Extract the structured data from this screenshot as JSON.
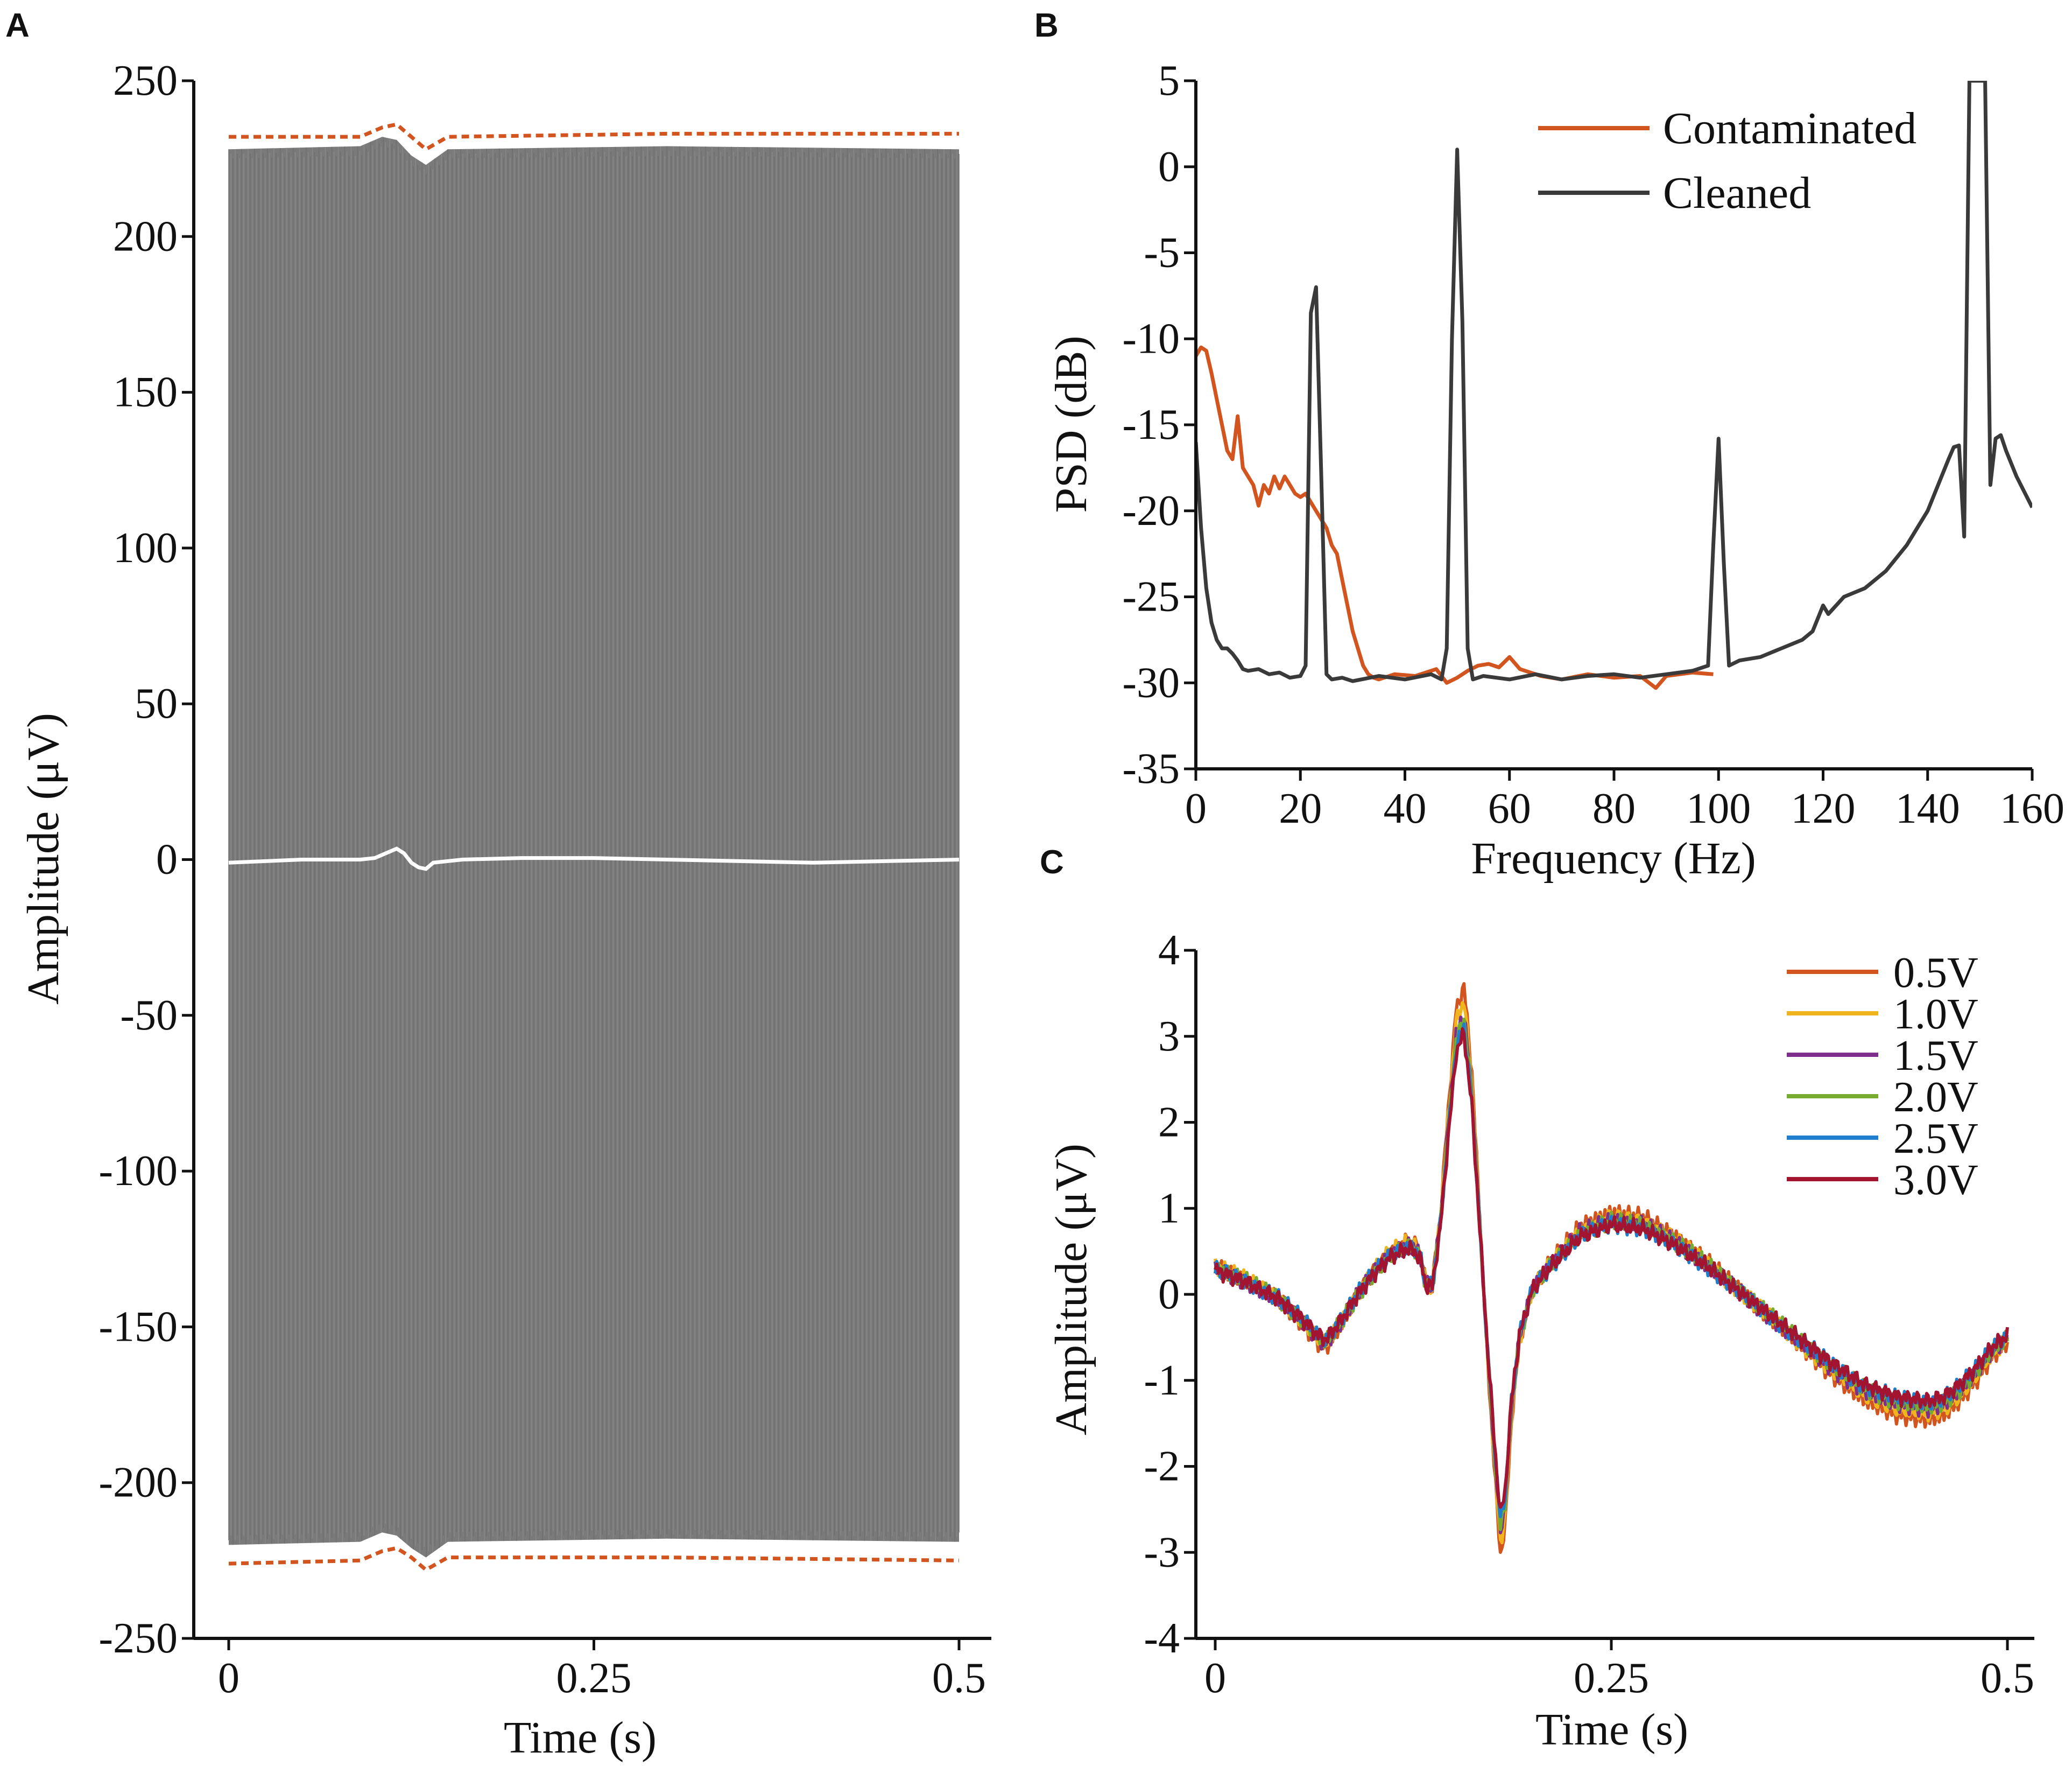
{
  "colors": {
    "axis": "#111111",
    "envelope_fill": "#7a7a7a",
    "envelope_bound": "#d2541f",
    "signal_A": "#ffffff",
    "contaminated": "#d2541f",
    "cleaned": "#3a3a3a"
  },
  "chart_data": [
    {
      "panel": "A",
      "type": "line",
      "title": "",
      "xlabel": "Time (s)",
      "ylabel": "Amplitude (μV)",
      "xlim": [
        0,
        0.5
      ],
      "ylim": [
        -250,
        250
      ],
      "xticks": [
        0,
        0.25,
        0.5
      ],
      "xtick_labels": [
        "0",
        "0.25",
        "0.5"
      ],
      "yticks": [
        250,
        200,
        150,
        100,
        50,
        0,
        -50,
        -100,
        -150,
        -200,
        -250
      ],
      "ytick_labels": [
        "250",
        "200",
        "150",
        "100",
        "50",
        "0",
        "-50",
        "-100",
        "-150",
        "-200",
        "-250"
      ],
      "envelope": {
        "x": [
          0,
          0.09,
          0.105,
          0.115,
          0.125,
          0.135,
          0.15,
          0.3,
          0.5
        ],
        "upper": [
          228,
          229,
          232,
          231,
          226,
          223,
          228,
          229,
          228
        ],
        "lower": [
          -220,
          -219,
          -216,
          -217,
          -221,
          -224,
          -219,
          -218,
          -219
        ]
      },
      "bounds": {
        "x": [
          0,
          0.09,
          0.105,
          0.115,
          0.125,
          0.135,
          0.15,
          0.3,
          0.5
        ],
        "upper": [
          232,
          232,
          235,
          236,
          232,
          228,
          232,
          233,
          233
        ],
        "lower": [
          -226,
          -225,
          -222,
          -221,
          -224,
          -228,
          -224,
          -224,
          -225
        ]
      },
      "series": [
        {
          "name": "signal",
          "x": [
            0,
            0.05,
            0.09,
            0.1,
            0.11,
            0.115,
            0.12,
            0.125,
            0.13,
            0.135,
            0.14,
            0.16,
            0.2,
            0.25,
            0.3,
            0.35,
            0.4,
            0.45,
            0.5
          ],
          "y": [
            -1,
            0,
            0,
            0.5,
            2.5,
            3.5,
            2,
            -1,
            -2.5,
            -3,
            -1,
            0,
            0.5,
            0.5,
            0,
            -0.5,
            -1,
            -0.5,
            0
          ]
        }
      ]
    },
    {
      "panel": "B",
      "type": "line",
      "title": "",
      "xlabel": "Frequency (Hz)",
      "ylabel": "PSD (dB)",
      "xlim": [
        0,
        160
      ],
      "ylim": [
        -35,
        5
      ],
      "xticks": [
        0,
        20,
        40,
        60,
        80,
        100,
        120,
        140,
        160
      ],
      "xtick_labels": [
        "0",
        "20",
        "40",
        "60",
        "80",
        "100",
        "120",
        "140",
        "160"
      ],
      "yticks": [
        5,
        0,
        -5,
        -10,
        -15,
        -20,
        -25,
        -30,
        -35
      ],
      "ytick_labels": [
        "5",
        "0",
        "-5",
        "-10",
        "-15",
        "-20",
        "-25",
        "-30",
        "-35"
      ],
      "legend": [
        "Contaminated",
        "Cleaned"
      ],
      "legend_position": "top-right",
      "series": [
        {
          "name": "Contaminated",
          "x": [
            0,
            1,
            2,
            3,
            4,
            5,
            6,
            7,
            8,
            9,
            10,
            11,
            12,
            13,
            14,
            15,
            16,
            17,
            18,
            19,
            20,
            21,
            22,
            23,
            24,
            25,
            26,
            27,
            28,
            29,
            30,
            31,
            32,
            33,
            34,
            35,
            38,
            42,
            46,
            48,
            50,
            52,
            54,
            56,
            58,
            60,
            62,
            64,
            66,
            70,
            75,
            80,
            85,
            88,
            90,
            95,
            99
          ],
          "y": [
            -11,
            -10.5,
            -10.7,
            -12,
            -13.5,
            -15,
            -16.5,
            -17,
            -14.5,
            -17.5,
            -18,
            -18.5,
            -19.7,
            -18.5,
            -19,
            -18,
            -18.7,
            -18,
            -18.5,
            -19,
            -19.2,
            -19,
            -19.5,
            -20,
            -20.5,
            -21,
            -22,
            -22.5,
            -24,
            -25.5,
            -27,
            -28,
            -29,
            -29.5,
            -29.7,
            -29.8,
            -29.5,
            -29.6,
            -29.2,
            -30,
            -29.7,
            -29.3,
            -29,
            -28.9,
            -29.1,
            -28.5,
            -29.2,
            -29.4,
            -29.6,
            -29.8,
            -29.5,
            -29.7,
            -29.6,
            -30.3,
            -29.6,
            -29.4,
            -29.5
          ]
        },
        {
          "name": "Cleaned",
          "x": [
            0,
            1,
            2,
            3,
            4,
            5,
            6,
            7,
            8,
            9,
            10,
            12,
            14,
            16,
            18,
            20,
            21,
            22,
            23,
            24,
            25,
            26,
            28,
            30,
            35,
            40,
            45,
            47,
            48,
            49,
            50,
            51,
            52,
            53,
            55,
            60,
            65,
            70,
            75,
            80,
            85,
            90,
            95,
            98,
            99,
            100,
            101,
            102,
            104,
            108,
            112,
            116,
            118,
            120,
            121,
            124,
            128,
            132,
            136,
            140,
            142,
            144,
            145,
            146,
            147,
            148,
            149,
            150,
            151,
            152,
            153,
            154,
            155,
            157,
            160
          ],
          "y": [
            -16,
            -21,
            -24.5,
            -26.5,
            -27.5,
            -28,
            -28,
            -28.3,
            -28.7,
            -29.2,
            -29.3,
            -29.2,
            -29.5,
            -29.4,
            -29.7,
            -29.6,
            -29,
            -8.5,
            -7,
            -18,
            -29.5,
            -29.8,
            -29.7,
            -29.9,
            -29.6,
            -29.8,
            -29.5,
            -29.8,
            -28,
            -10,
            1,
            -9,
            -28,
            -29.8,
            -29.6,
            -29.8,
            -29.5,
            -29.8,
            -29.6,
            -29.5,
            -29.7,
            -29.5,
            -29.3,
            -29,
            -22,
            -15.8,
            -23,
            -29,
            -28.7,
            -28.5,
            -28,
            -27.5,
            -27,
            -25.5,
            -26,
            -25,
            -24.5,
            -23.5,
            -22,
            -20,
            -18.5,
            -17,
            -16.3,
            -16.2,
            -21.5,
            5,
            5,
            5,
            5,
            -18.5,
            -15.8,
            -15.6,
            -16.5,
            -18,
            -19.8
          ]
        }
      ]
    },
    {
      "panel": "C",
      "type": "line",
      "title": "",
      "xlabel": "Time (s)",
      "ylabel": "Amplitude (μV)",
      "xlim": [
        0,
        0.5
      ],
      "ylim": [
        -4,
        4
      ],
      "xticks": [
        0,
        0.25,
        0.5
      ],
      "xtick_labels": [
        "0",
        "0.25",
        "0.5"
      ],
      "yticks": [
        4,
        3,
        2,
        1,
        0,
        -1,
        -2,
        -3,
        -4
      ],
      "ytick_labels": [
        "4",
        "3",
        "2",
        "1",
        "0",
        "-1",
        "-2",
        "-3",
        "-4"
      ],
      "legend": [
        "0.5V",
        "1.0V",
        "1.5V",
        "2.0V",
        "2.5V",
        "3.0V"
      ],
      "legend_position": "top-right",
      "series_colors": [
        "#d2541f",
        "#f0b51e",
        "#7e2f8e",
        "#77ac30",
        "#1f7fce",
        "#a2142f"
      ],
      "base_curve": {
        "x": [
          0,
          0.02,
          0.04,
          0.055,
          0.065,
          0.07,
          0.08,
          0.09,
          0.1,
          0.11,
          0.12,
          0.125,
          0.13,
          0.133,
          0.137,
          0.142,
          0.147,
          0.152,
          0.157,
          0.162,
          0.167,
          0.172,
          0.177,
          0.18,
          0.183,
          0.187,
          0.192,
          0.2,
          0.21,
          0.23,
          0.25,
          0.27,
          0.29,
          0.31,
          0.33,
          0.35,
          0.37,
          0.39,
          0.41,
          0.43,
          0.45,
          0.46,
          0.47,
          0.48,
          0.49,
          0.5
        ],
        "y": [
          0.3,
          0.15,
          -0.05,
          -0.3,
          -0.5,
          -0.55,
          -0.3,
          0,
          0.25,
          0.45,
          0.55,
          0.55,
          0.4,
          0.1,
          0.1,
          0.8,
          1.9,
          2.95,
          3.2,
          2.3,
          0.8,
          -0.7,
          -2,
          -2.7,
          -2.4,
          -1.3,
          -0.5,
          0.05,
          0.3,
          0.7,
          0.85,
          0.8,
          0.6,
          0.35,
          0.05,
          -0.25,
          -0.55,
          -0.85,
          -1.1,
          -1.25,
          -1.3,
          -1.25,
          -1.1,
          -0.9,
          -0.65,
          -0.5
        ]
      },
      "series_scale": [
        1.12,
        1.07,
        1.02,
        1.0,
        0.97,
        0.95
      ]
    }
  ]
}
